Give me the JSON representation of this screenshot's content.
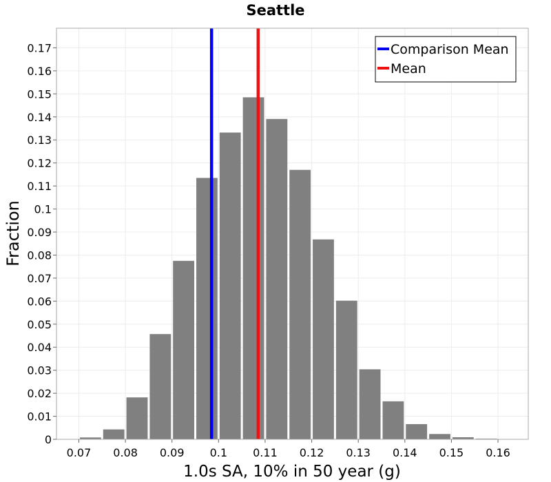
{
  "chart_data": {
    "type": "bar",
    "title": "Seattle",
    "xlabel": "1.0s SA, 10% in 50 year (g)",
    "ylabel": "Fraction",
    "xlim": [
      0.0652,
      0.1665
    ],
    "ylim": [
      0,
      0.1785
    ],
    "grid": true,
    "legend_position": "top-right",
    "bin_width": 0.005,
    "x": [
      0.0725,
      0.0775,
      0.0825,
      0.0875,
      0.0925,
      0.0975,
      0.1025,
      0.1075,
      0.1125,
      0.1175,
      0.1225,
      0.1275,
      0.1325,
      0.1375,
      0.1425,
      0.1475,
      0.1525,
      0.1575,
      0.1625
    ],
    "values": [
      0.0008,
      0.0043,
      0.0182,
      0.0457,
      0.0775,
      0.1135,
      0.1332,
      0.1485,
      0.1391,
      0.117,
      0.0868,
      0.0602,
      0.0304,
      0.0165,
      0.0066,
      0.0023,
      0.0009,
      0.0003,
      0.0001
    ],
    "x_ticks": [
      "0.07",
      "0.08",
      "0.09",
      "0.1",
      "0.11",
      "0.12",
      "0.13",
      "0.14",
      "0.15",
      "0.16"
    ],
    "y_ticks": [
      "0",
      "0.01",
      "0.02",
      "0.03",
      "0.04",
      "0.05",
      "0.06",
      "0.07",
      "0.08",
      "0.09",
      "0.1",
      "0.11",
      "0.12",
      "0.13",
      "0.14",
      "0.15",
      "0.16",
      "0.17"
    ],
    "vlines": [
      {
        "name": "Comparison Mean",
        "x": 0.0985,
        "color": "#0000ee"
      },
      {
        "name": "Mean",
        "x": 0.1085,
        "color": "#ee1111"
      }
    ],
    "bar_color": "#808080"
  }
}
